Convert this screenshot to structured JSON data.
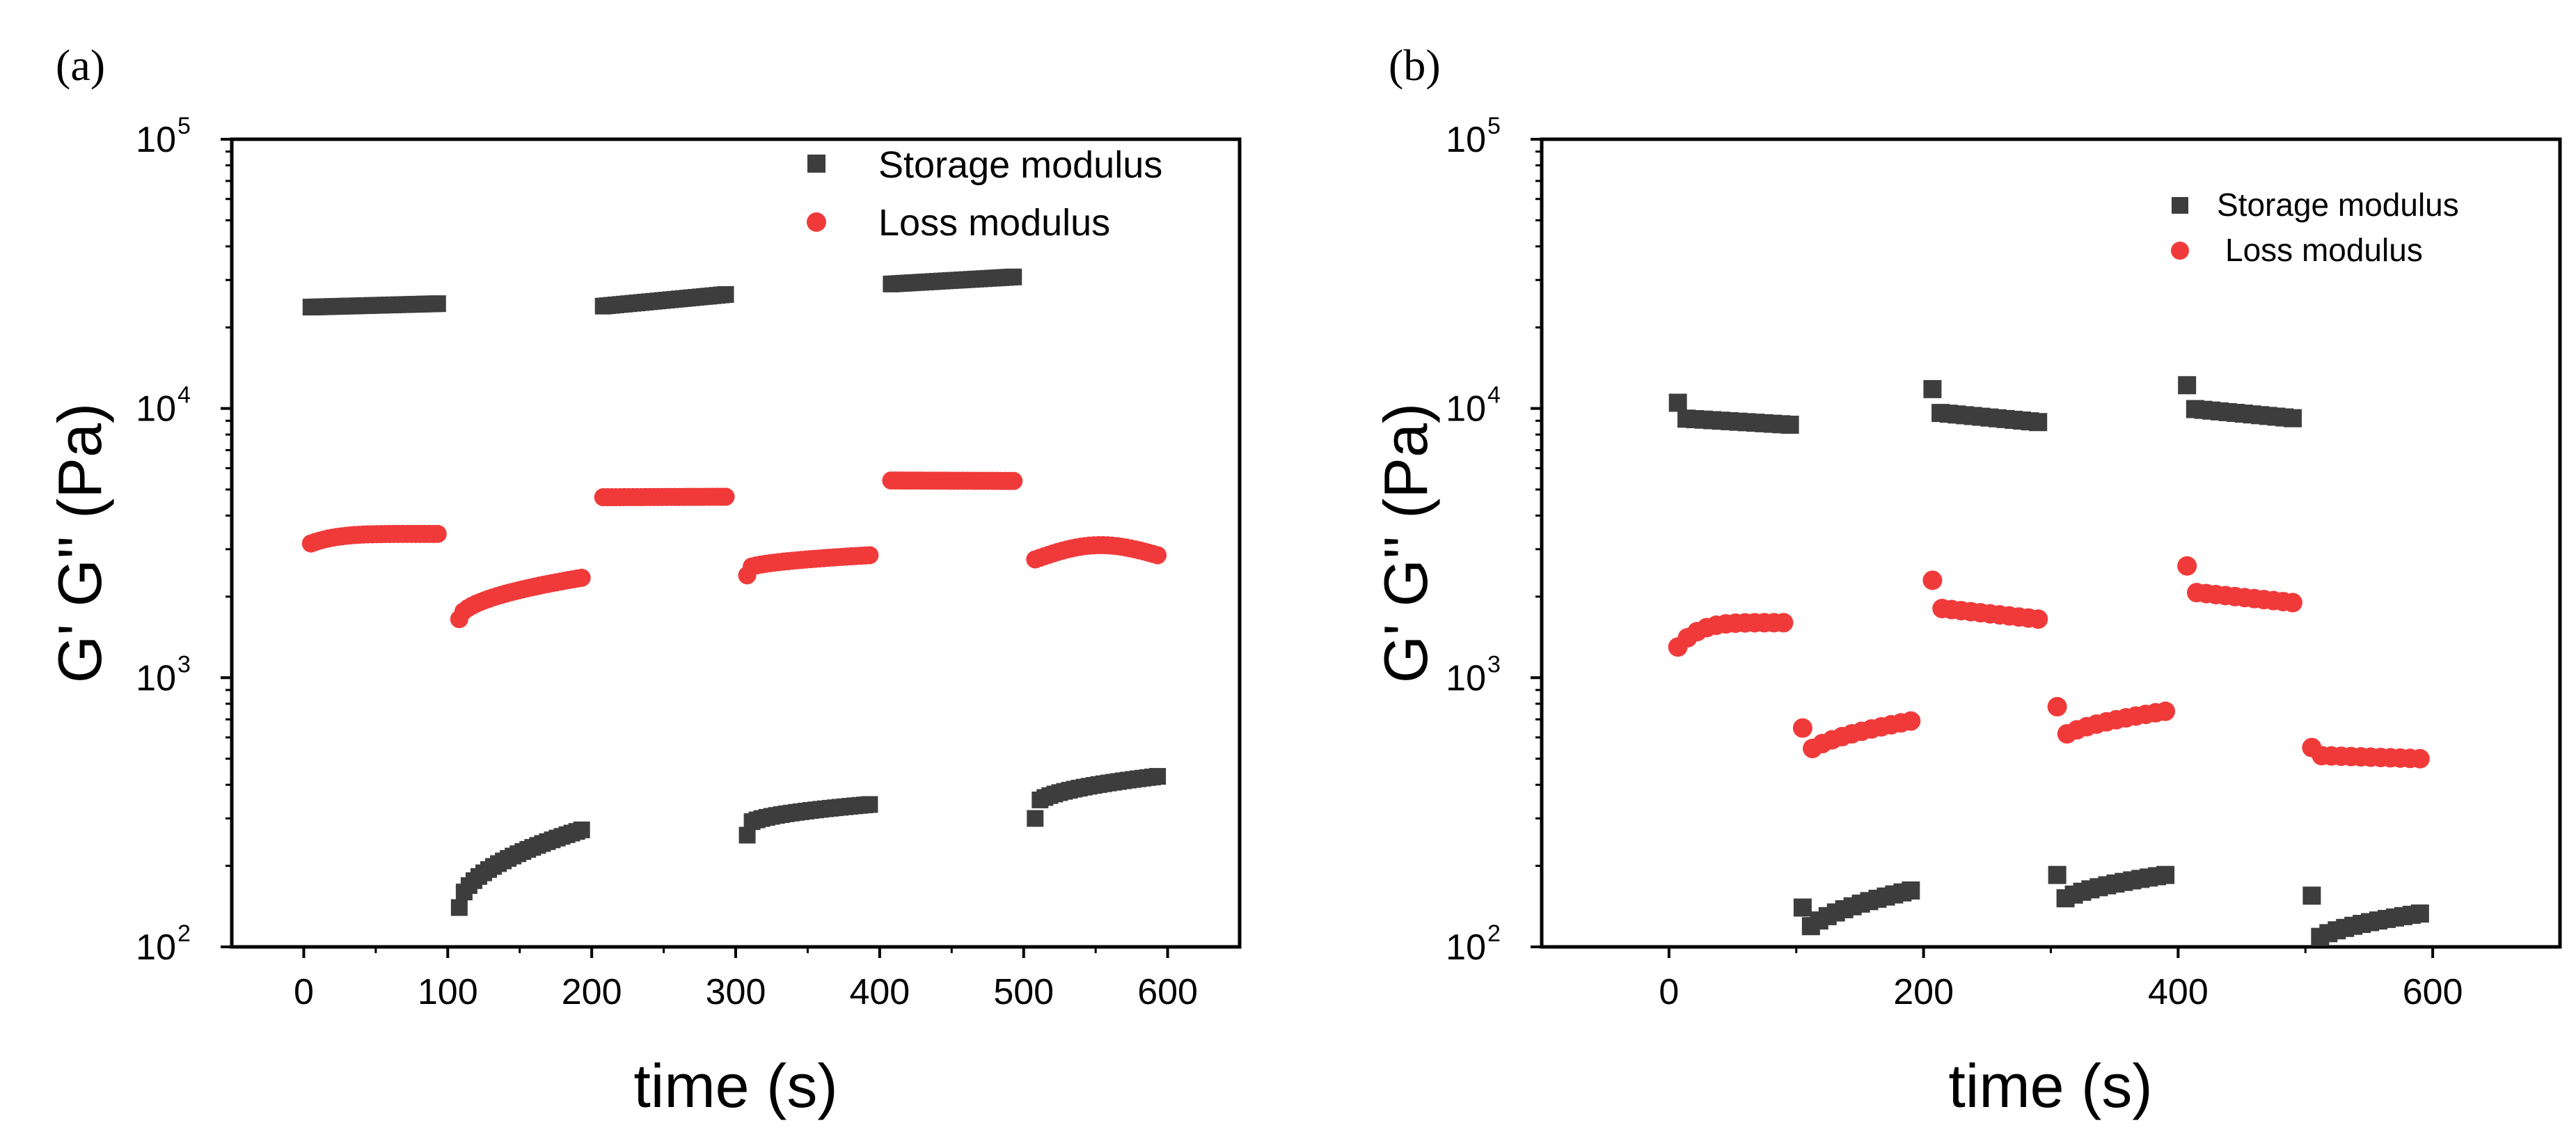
{
  "chart_data": [
    {
      "panel_label": "(a)",
      "type": "scatter",
      "xlabel": "time (s)",
      "ylabel": "G' G'' (Pa)",
      "xlim": [
        -50,
        650
      ],
      "ylim": [
        100,
        100000
      ],
      "yscale": "log",
      "xticks": [
        0,
        100,
        200,
        300,
        400,
        500,
        600
      ],
      "yticks": [
        {
          "value": 100,
          "base": "10",
          "exp": "2"
        },
        {
          "value": 1000,
          "base": "10",
          "exp": "3"
        },
        {
          "value": 10000,
          "base": "10",
          "exp": "4"
        },
        {
          "value": 100000,
          "base": "10",
          "exp": "5"
        }
      ],
      "legend_position": "top-right",
      "series": [
        {
          "name": "Storage modulus",
          "marker": "square",
          "color": "#3d3d3d",
          "segments": [
            {
              "t0": 5,
              "t1": 93,
              "v0": 23800,
              "v1": 24500,
              "shape": "linear",
              "n": 30
            },
            {
              "t0": 108,
              "t1": 193,
              "v0": 140,
              "v1": 272,
              "shape": "sqrt",
              "n": 26
            },
            {
              "t0": 208,
              "t1": 293,
              "v0": 24000,
              "v1": 26500,
              "shape": "linear",
              "n": 30
            },
            {
              "t0": 308,
              "t1": 393,
              "v0": 260,
              "v1": 338,
              "shape": "jump",
              "n": 26
            },
            {
              "t0": 408,
              "t1": 493,
              "v0": 29000,
              "v1": 30800,
              "shape": "linear",
              "n": 30
            },
            {
              "t0": 508,
              "t1": 593,
              "v0": 300,
              "v1": 430,
              "shape": "jump",
              "n": 26
            }
          ]
        },
        {
          "name": "Loss modulus",
          "marker": "circle",
          "color": "#f03a3a",
          "segments": [
            {
              "t0": 5,
              "t1": 93,
              "v0": 3150,
              "v1": 3420,
              "shape": "plateau",
              "n": 30
            },
            {
              "t0": 108,
              "t1": 193,
              "v0": 1650,
              "v1": 2350,
              "shape": "sqrt",
              "n": 30
            },
            {
              "t0": 208,
              "t1": 293,
              "v0": 4680,
              "v1": 4700,
              "shape": "flat",
              "n": 30
            },
            {
              "t0": 308,
              "t1": 393,
              "v0": 2400,
              "v1": 2850,
              "shape": "jump",
              "n": 28
            },
            {
              "t0": 408,
              "t1": 493,
              "v0": 5400,
              "v1": 5380,
              "shape": "flat",
              "n": 30
            },
            {
              "t0": 508,
              "t1": 593,
              "v0": 2750,
              "v1": 2850,
              "shape": "dome",
              "n": 28
            }
          ]
        }
      ]
    },
    {
      "panel_label": "(b)",
      "type": "scatter",
      "xlabel": "time (s)",
      "ylabel": "G' G'' (Pa)",
      "xlim": [
        -100,
        700
      ],
      "ylim": [
        100,
        100000
      ],
      "yscale": "log",
      "xticks": [
        0,
        200,
        400,
        600
      ],
      "yticks": [
        {
          "value": 100,
          "base": "10",
          "exp": "2"
        },
        {
          "value": 1000,
          "base": "10",
          "exp": "3"
        },
        {
          "value": 10000,
          "base": "10",
          "exp": "4"
        },
        {
          "value": 100000,
          "base": "10",
          "exp": "5"
        }
      ],
      "legend_position": "top-right",
      "series": [
        {
          "name": "Storage modulus",
          "marker": "square",
          "color": "#3d3d3d",
          "segments": [
            {
              "t0": 7,
              "t1": 95,
              "v0": 10500,
              "v1": 8700,
              "shape": "drop",
              "n": 14
            },
            {
              "t0": 105,
              "t1": 190,
              "v0": 140,
              "v1": 162,
              "shape": "dip",
              "n": 14
            },
            {
              "t0": 207,
              "t1": 290,
              "v0": 11800,
              "v1": 8900,
              "shape": "drop",
              "n": 14
            },
            {
              "t0": 305,
              "t1": 390,
              "v0": 185,
              "v1": 185,
              "shape": "dip",
              "n": 14
            },
            {
              "t0": 407,
              "t1": 490,
              "v0": 12200,
              "v1": 9200,
              "shape": "drop",
              "n": 14
            },
            {
              "t0": 505,
              "t1": 590,
              "v0": 155,
              "v1": 133,
              "shape": "dip",
              "n": 14
            }
          ]
        },
        {
          "name": "Loss modulus",
          "marker": "circle",
          "color": "#f03a3a",
          "segments": [
            {
              "t0": 7,
              "t1": 90,
              "v0": 1300,
              "v1": 1600,
              "shape": "plateau",
              "n": 12
            },
            {
              "t0": 105,
              "t1": 190,
              "v0": 650,
              "v1": 690,
              "shape": "dip",
              "n": 12
            },
            {
              "t0": 207,
              "t1": 290,
              "v0": 2300,
              "v1": 1650,
              "shape": "drop",
              "n": 12
            },
            {
              "t0": 305,
              "t1": 390,
              "v0": 780,
              "v1": 750,
              "shape": "dip",
              "n": 12
            },
            {
              "t0": 407,
              "t1": 490,
              "v0": 2600,
              "v1": 1900,
              "shape": "drop",
              "n": 12
            },
            {
              "t0": 505,
              "t1": 590,
              "v0": 550,
              "v1": 500,
              "shape": "drop",
              "n": 12
            }
          ]
        }
      ]
    }
  ]
}
